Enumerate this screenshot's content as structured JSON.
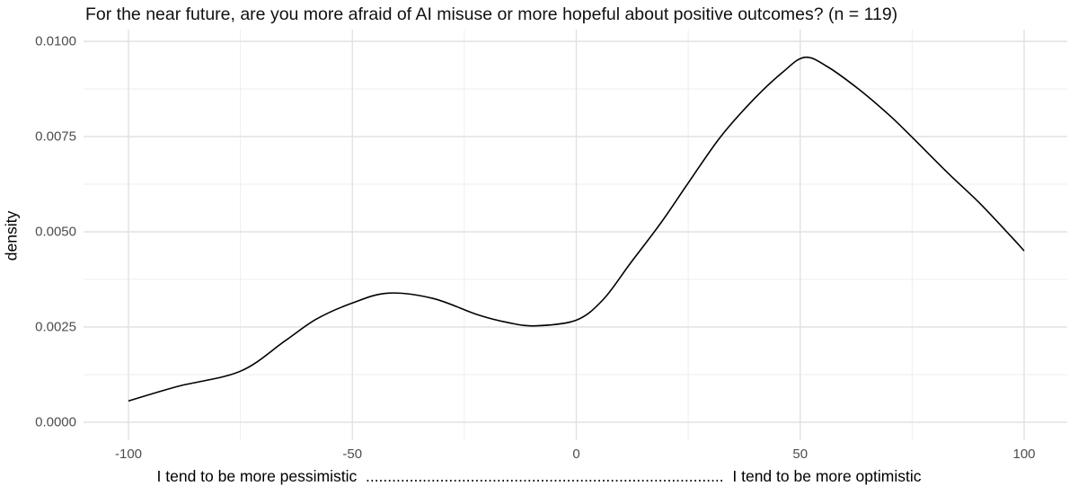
{
  "chart_data": {
    "type": "density",
    "title": "For the near future, are you more afraid of AI misuse or more hopeful about positive outcomes? (n = 119)",
    "ylabel": "density",
    "xlabel": "I tend to be more pessimistic  ..................................................................................  I tend to be more optimistic",
    "xlabel_left_anchor": "I tend to be more pessimistic",
    "xlabel_right_anchor": "I tend to be more optimistic",
    "n": 119,
    "x_axis": {
      "ticks": [
        {
          "v": -100,
          "label": "-100"
        },
        {
          "v": -50,
          "label": "-50"
        },
        {
          "v": 0,
          "label": "0"
        },
        {
          "v": 50,
          "label": "50"
        },
        {
          "v": 100,
          "label": "100"
        }
      ],
      "minor_ticks": [
        -75,
        -25,
        25,
        75
      ],
      "range": [
        -100,
        100
      ]
    },
    "y_axis": {
      "ticks": [
        {
          "v": 0.0,
          "label": "0.0000"
        },
        {
          "v": 0.0025,
          "label": "0.0025"
        },
        {
          "v": 0.005,
          "label": "0.0050"
        },
        {
          "v": 0.0075,
          "label": "0.0075"
        },
        {
          "v": 0.01,
          "label": "0.0100"
        }
      ],
      "minor_ticks": [
        0.00125,
        0.00375,
        0.00625,
        0.00875
      ],
      "range": [
        0,
        0.01
      ]
    },
    "grid": "major+minor",
    "legend": "none",
    "series": [
      {
        "name": "density",
        "points": [
          [
            -100,
            0.00056
          ],
          [
            -89,
            0.00094
          ],
          [
            -75,
            0.00134
          ],
          [
            -65,
            0.00214
          ],
          [
            -58,
            0.00271
          ],
          [
            -50,
            0.00313
          ],
          [
            -42,
            0.00339
          ],
          [
            -32,
            0.00325
          ],
          [
            -22,
            0.00282
          ],
          [
            -15,
            0.00261
          ],
          [
            -9,
            0.00253
          ],
          [
            0,
            0.00268
          ],
          [
            6,
            0.00322
          ],
          [
            12,
            0.00416
          ],
          [
            19,
            0.00525
          ],
          [
            25,
            0.00628
          ],
          [
            32,
            0.00746
          ],
          [
            39,
            0.0084
          ],
          [
            46,
            0.00918
          ],
          [
            51,
            0.00958
          ],
          [
            56,
            0.00934
          ],
          [
            63,
            0.00875
          ],
          [
            70,
            0.00805
          ],
          [
            75,
            0.00748
          ],
          [
            83,
            0.00654
          ],
          [
            90,
            0.00576
          ],
          [
            97,
            0.00489
          ],
          [
            100,
            0.0045
          ]
        ],
        "peak": {
          "x": 51,
          "density": 0.0096
        },
        "local_max": {
          "x": -42,
          "density": 0.0034
        },
        "local_min": {
          "x": -9,
          "density": 0.0025
        }
      }
    ],
    "colors": {
      "line": "#000000",
      "grid_major": "#e2e2e2",
      "grid_minor": "#ececec",
      "tick_text": "#4d4d4d",
      "title_text": "#111111",
      "background": "#ffffff"
    }
  }
}
